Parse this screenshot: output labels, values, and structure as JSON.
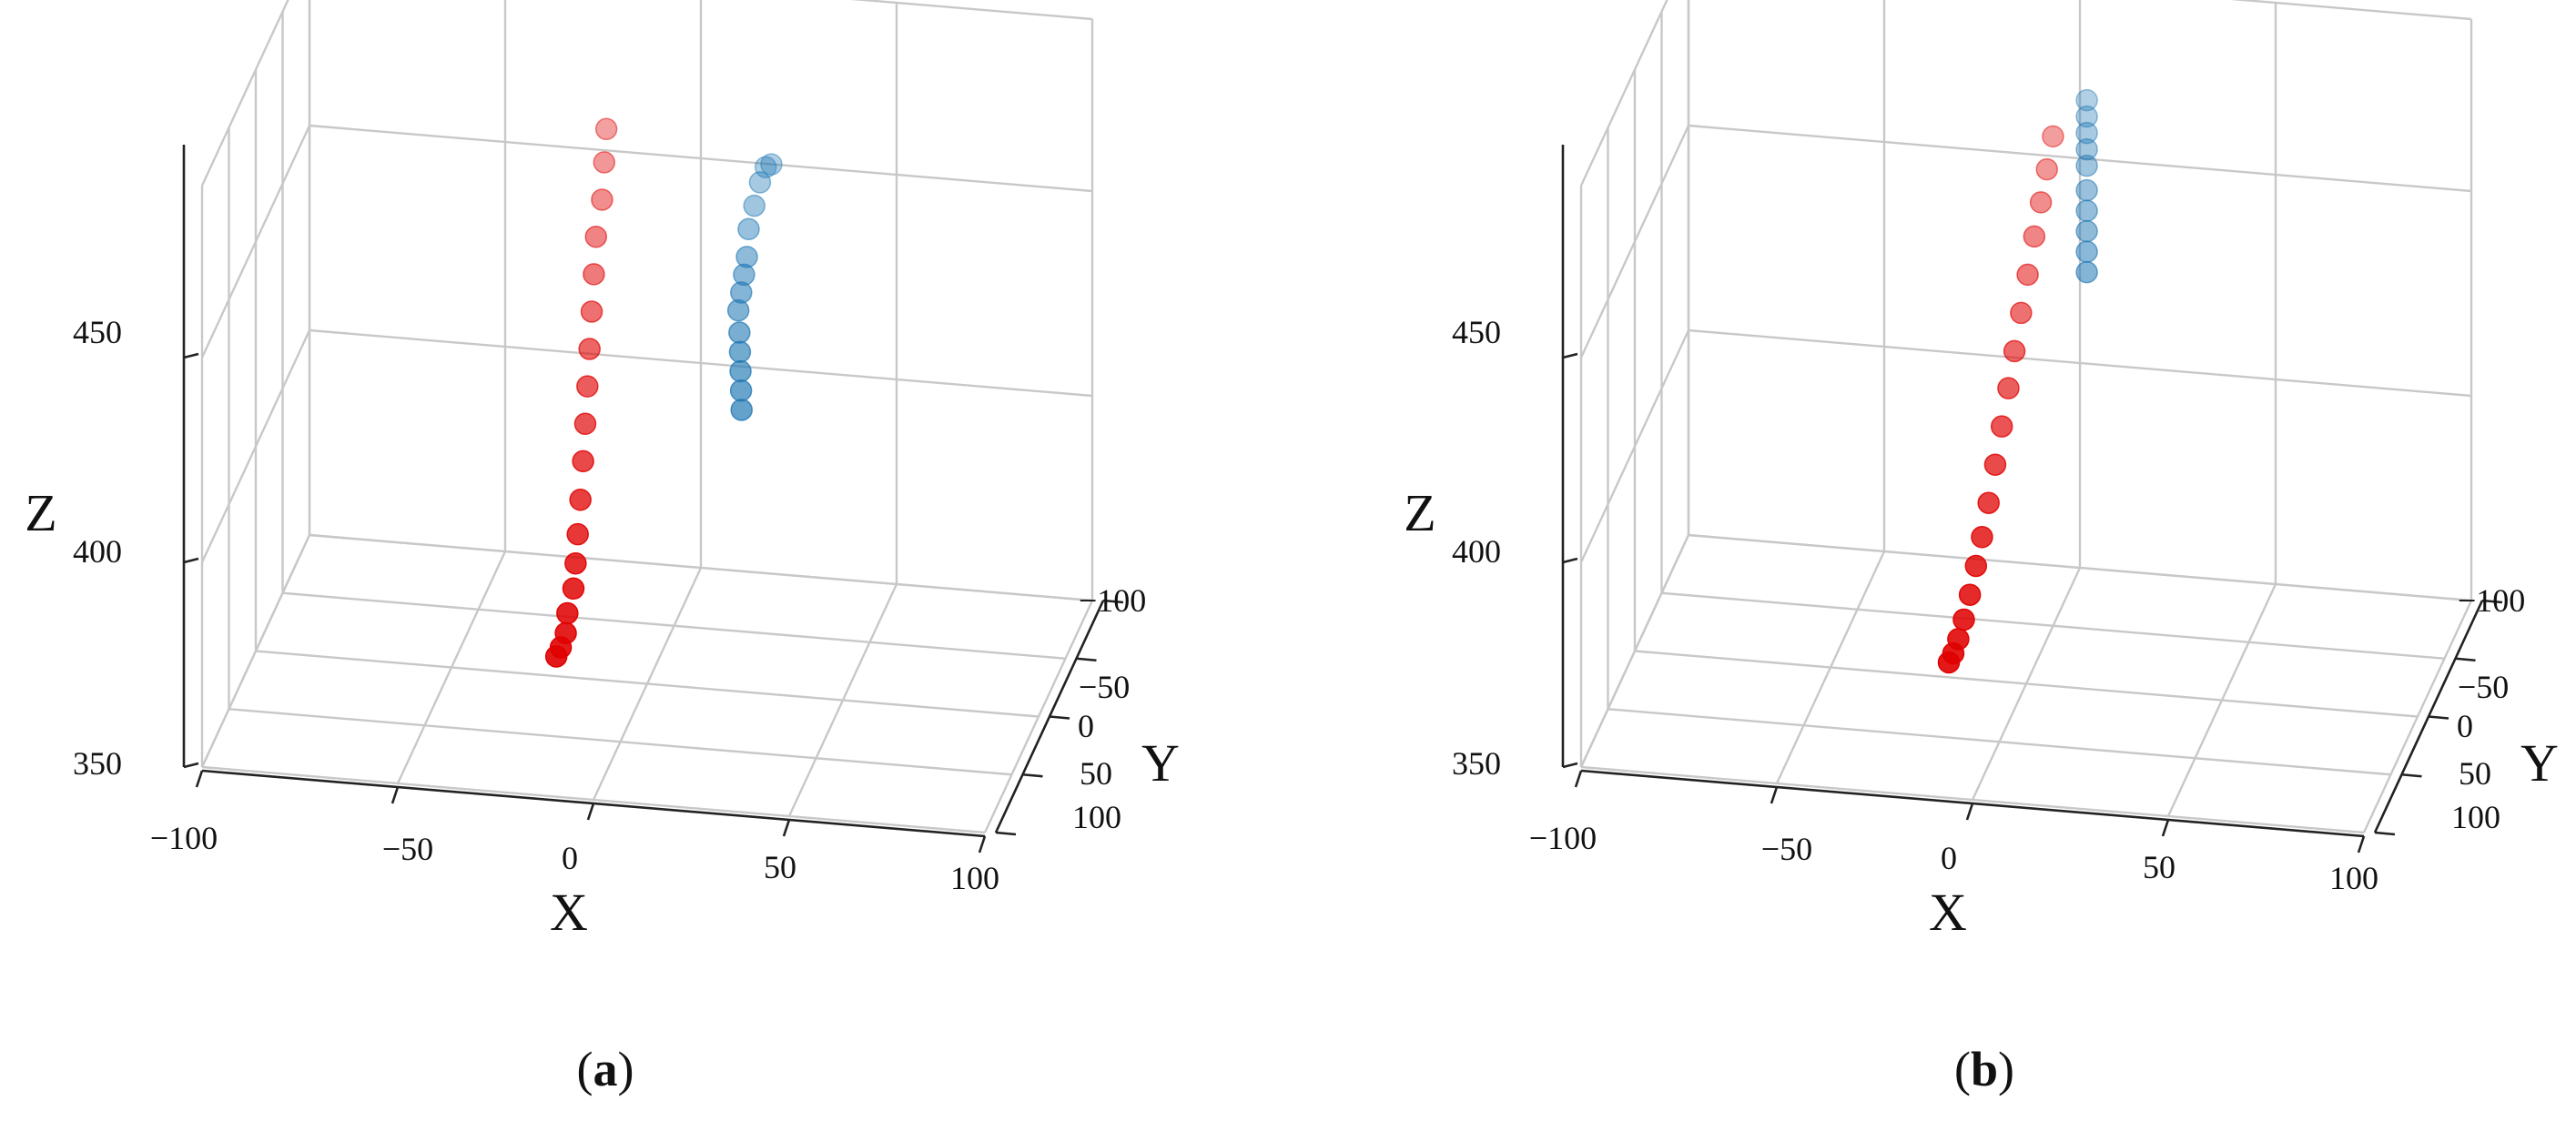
{
  "colors": {
    "early": "#1f77b4",
    "late": "#e00000"
  },
  "chart_data": [
    {
      "type": "scatter",
      "panel": "a",
      "label": "a",
      "x_axis": {
        "label": "X",
        "range": [
          -100,
          100
        ],
        "ticks": [
          "−100",
          "−50",
          "0",
          "50",
          "100"
        ]
      },
      "y_axis": {
        "label": "Y",
        "range": [
          -100,
          100
        ],
        "ticks": [
          "−100",
          "−50",
          "0",
          "50",
          "100"
        ]
      },
      "z_axis": {
        "label": "Z",
        "range": [
          350,
          480
        ],
        "ticks": [
          "350",
          "400",
          "450"
        ]
      },
      "grid": true,
      "series": [
        {
          "color": "#1f77b4",
          "points": [
            [
              20,
              -30,
              410
            ],
            [
              20,
              -29,
              415
            ],
            [
              20,
              -28,
              420
            ],
            [
              20,
              -27,
              425
            ],
            [
              20,
              -26,
              430
            ],
            [
              20,
              -24,
              436
            ],
            [
              21,
              -22,
              441
            ],
            [
              22,
              -20,
              446
            ],
            [
              23,
              -18,
              451
            ],
            [
              24,
              -14,
              459
            ],
            [
              26,
              -10,
              466
            ],
            [
              28,
              -6,
              473
            ],
            [
              30,
              -2,
              478
            ],
            [
              32,
              2,
              480
            ]
          ]
        },
        {
          "color": "#e00000",
          "points": [
            [
              -18,
              38,
              366
            ],
            [
              -17,
              37,
              368
            ],
            [
              -16,
              35,
              371
            ],
            [
              -16,
              32,
              375
            ],
            [
              -15,
              28,
              380
            ],
            [
              -15,
              24,
              385
            ],
            [
              -15,
              20,
              391
            ],
            [
              -15,
              15,
              398
            ],
            [
              -15,
              10,
              406
            ],
            [
              -15,
              6,
              414
            ],
            [
              -15,
              2,
              422
            ],
            [
              -15,
              -2,
              430
            ],
            [
              -15,
              -6,
              438
            ],
            [
              -15,
              -10,
              446
            ],
            [
              -15,
              -14,
              454
            ],
            [
              -14,
              -18,
              462
            ],
            [
              -14,
              -22,
              470
            ],
            [
              -14,
              -26,
              477
            ]
          ]
        }
      ]
    },
    {
      "type": "scatter",
      "panel": "b",
      "label": "b",
      "x_axis": {
        "label": "X",
        "range": [
          -100,
          100
        ],
        "ticks": [
          "−100",
          "−50",
          "0",
          "50",
          "100"
        ]
      },
      "y_axis": {
        "label": "Y",
        "range": [
          -100,
          100
        ],
        "ticks": [
          "−100",
          "−50",
          "0",
          "50",
          "100"
        ]
      },
      "z_axis": {
        "label": "Z",
        "range": [
          350,
          480
        ],
        "ticks": [
          "350",
          "400",
          "450"
        ]
      },
      "grid": true,
      "series": [
        {
          "color": "#1f77b4",
          "points": [
            [
              10,
              -40,
              440
            ],
            [
              10,
              -40,
              445
            ],
            [
              10,
              -40,
              450
            ],
            [
              10,
              -40,
              455
            ],
            [
              10,
              -40,
              460
            ],
            [
              10,
              -40,
              466
            ],
            [
              10,
              -40,
              470
            ],
            [
              10,
              -40,
              474
            ],
            [
              10,
              -40,
              478
            ],
            [
              10,
              -40,
              482
            ]
          ]
        },
        {
          "color": "#e00000",
          "points": [
            [
              -14,
              42,
              366
            ],
            [
              -13,
              41,
              368
            ],
            [
              -12,
              39,
              371
            ],
            [
              -11,
              36,
              375
            ],
            [
              -10,
              32,
              380
            ],
            [
              -9,
              28,
              386
            ],
            [
              -8,
              24,
              392
            ],
            [
              -7,
              19,
              399
            ],
            [
              -6,
              14,
              407
            ],
            [
              -5,
              9,
              415
            ],
            [
              -4,
              4,
              423
            ],
            [
              -3,
              0,
              431
            ],
            [
              -2,
              -5,
              439
            ],
            [
              -1,
              -10,
              447
            ],
            [
              0,
              -15,
              455
            ],
            [
              1,
              -20,
              462
            ],
            [
              2,
              -24,
              469
            ],
            [
              3,
              -28,
              476
            ]
          ]
        }
      ]
    }
  ]
}
